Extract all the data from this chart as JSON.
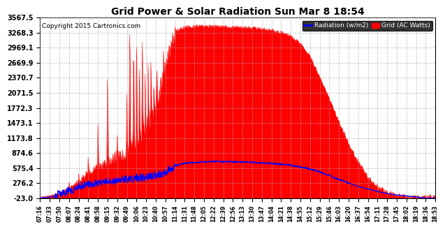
{
  "title": "Grid Power & Solar Radiation Sun Mar 8 18:54",
  "copyright": "Copyright 2015 Cartronics.com",
  "background_color": "#ffffff",
  "plot_bg_color": "#ffffff",
  "grid_color": "#aaaaaa",
  "y_ticks": [
    -23.0,
    276.2,
    575.4,
    874.6,
    1173.8,
    1473.1,
    1772.3,
    2071.5,
    2370.7,
    2669.9,
    2969.1,
    3268.3,
    3567.5
  ],
  "y_min": -23.0,
  "y_max": 3567.5,
  "solar_color": "#ff0000",
  "grid_line_color": "#0000ff",
  "legend_labels": [
    "Radiation (w/m2)",
    "Grid (AC Watts)"
  ],
  "legend_colors": [
    "#0000ff",
    "#ff0000"
  ],
  "x_labels": [
    "07:16",
    "07:33",
    "07:50",
    "08:07",
    "08:24",
    "08:41",
    "08:58",
    "09:15",
    "09:32",
    "09:49",
    "10:06",
    "10:23",
    "10:40",
    "10:57",
    "11:14",
    "11:31",
    "11:48",
    "12:05",
    "12:22",
    "12:39",
    "12:56",
    "13:13",
    "13:30",
    "13:47",
    "14:04",
    "14:21",
    "14:38",
    "14:55",
    "15:12",
    "15:29",
    "15:46",
    "16:03",
    "16:20",
    "16:37",
    "16:54",
    "17:11",
    "17:28",
    "17:45",
    "18:02",
    "18:19",
    "18:36",
    "18:53"
  ],
  "solar_base_envelope": [
    0,
    30,
    80,
    180,
    320,
    480,
    600,
    700,
    820,
    900,
    1100,
    1400,
    1800,
    2600,
    3300,
    3380,
    3400,
    3400,
    3400,
    3390,
    3380,
    3370,
    3360,
    3350,
    3320,
    3280,
    3200,
    3050,
    2800,
    2400,
    1950,
    1500,
    1050,
    700,
    400,
    200,
    100,
    40,
    10,
    0,
    0,
    0
  ],
  "grid_base_envelope": [
    -23,
    0,
    50,
    120,
    200,
    250,
    280,
    310,
    330,
    350,
    380,
    400,
    430,
    480,
    620,
    670,
    690,
    700,
    710,
    705,
    700,
    695,
    690,
    680,
    670,
    655,
    630,
    600,
    560,
    500,
    430,
    350,
    280,
    210,
    160,
    110,
    70,
    40,
    20,
    5,
    -23,
    -23
  ],
  "spike_positions": [
    3,
    4,
    5,
    6,
    7,
    8,
    9,
    9.3,
    9.7,
    10.0,
    10.3,
    10.6,
    10.9,
    11.2,
    11.5,
    11.8,
    12.1,
    12.5,
    12.8,
    13.1,
    13.4
  ],
  "spike_heights": [
    350,
    500,
    900,
    1600,
    2600,
    1400,
    2200,
    3700,
    3400,
    3500,
    2800,
    3200,
    2500,
    2900,
    3100,
    2700,
    3000,
    2600,
    3000,
    2800,
    2500
  ]
}
